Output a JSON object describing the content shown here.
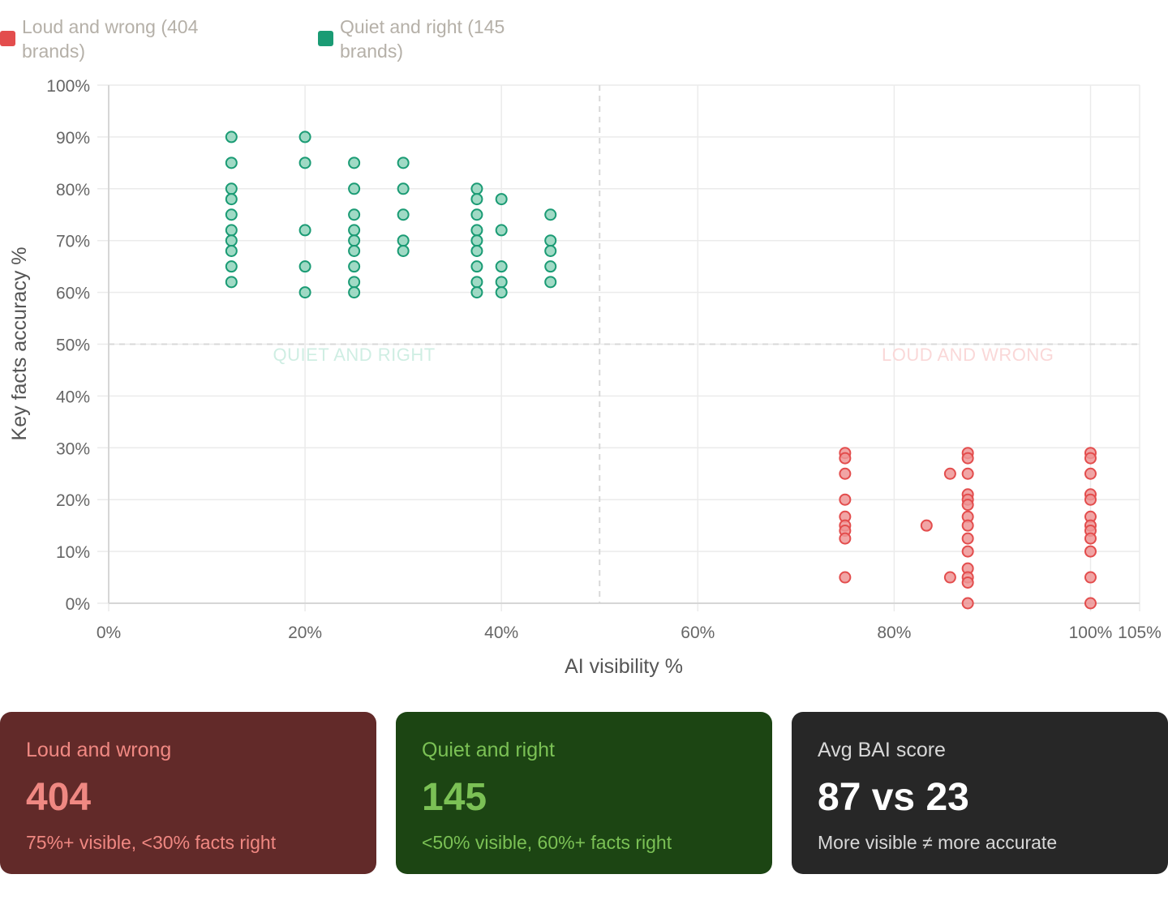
{
  "colors": {
    "red": "#e34d4d",
    "red_fill": "#ef9595",
    "green": "#1a9b74",
    "green_fill": "#8fd3bb",
    "grid": "#ebebeb",
    "axis_text": "#666666"
  },
  "legend": [
    {
      "label": "Loud and wrong (404 brands)",
      "color": "#e34d4d"
    },
    {
      "label": "Quiet and right (145 brands)",
      "color": "#1a9b74"
    }
  ],
  "chart_data": {
    "type": "scatter",
    "xlabel": "AI visibility %",
    "ylabel": "Key facts accuracy %",
    "xlim": [
      0,
      105
    ],
    "ylim": [
      0,
      100
    ],
    "xticks": [
      0,
      20,
      40,
      60,
      80,
      100,
      105
    ],
    "xtick_labels": [
      "0%",
      "20%",
      "40%",
      "60%",
      "80%",
      "100%",
      "105%"
    ],
    "yticks": [
      0,
      10,
      20,
      30,
      40,
      50,
      60,
      70,
      80,
      90,
      100
    ],
    "ytick_labels": [
      "0%",
      "10%",
      "20%",
      "30%",
      "40%",
      "50%",
      "60%",
      "70%",
      "80%",
      "90%",
      "100%"
    ],
    "reference_lines": {
      "x": 50,
      "y": 50
    },
    "quadrant_labels": [
      {
        "text": "QUIET AND RIGHT",
        "x": 25,
        "y": 49,
        "color": "#cfeee3"
      },
      {
        "text": "LOUD AND WRONG",
        "x": 87.5,
        "y": 49,
        "color": "#fad8d8"
      }
    ],
    "series": [
      {
        "name": "Quiet and right",
        "color": "#1a9b74",
        "fill": "#8fd3bb",
        "points": [
          [
            12.5,
            90
          ],
          [
            12.5,
            85
          ],
          [
            12.5,
            80
          ],
          [
            12.5,
            78
          ],
          [
            12.5,
            75
          ],
          [
            12.5,
            72
          ],
          [
            12.5,
            70
          ],
          [
            12.5,
            68
          ],
          [
            12.5,
            65
          ],
          [
            12.5,
            62
          ],
          [
            20,
            90
          ],
          [
            20,
            85
          ],
          [
            20,
            72
          ],
          [
            20,
            65
          ],
          [
            20,
            60
          ],
          [
            25,
            85
          ],
          [
            25,
            80
          ],
          [
            25,
            75
          ],
          [
            25,
            72
          ],
          [
            25,
            70
          ],
          [
            25,
            68
          ],
          [
            25,
            65
          ],
          [
            25,
            62
          ],
          [
            25,
            60
          ],
          [
            30,
            85
          ],
          [
            30,
            80
          ],
          [
            30,
            75
          ],
          [
            30,
            70
          ],
          [
            30,
            68
          ],
          [
            37.5,
            80
          ],
          [
            37.5,
            78
          ],
          [
            37.5,
            75
          ],
          [
            37.5,
            72
          ],
          [
            37.5,
            70
          ],
          [
            37.5,
            68
          ],
          [
            37.5,
            65
          ],
          [
            37.5,
            62
          ],
          [
            37.5,
            60
          ],
          [
            40,
            78
          ],
          [
            40,
            72
          ],
          [
            40,
            65
          ],
          [
            40,
            62
          ],
          [
            40,
            60
          ],
          [
            45,
            75
          ],
          [
            45,
            70
          ],
          [
            45,
            68
          ],
          [
            45,
            65
          ],
          [
            45,
            62
          ]
        ]
      },
      {
        "name": "Loud and wrong",
        "color": "#e34d4d",
        "fill": "#ef9595",
        "points": [
          [
            75,
            29
          ],
          [
            75,
            28
          ],
          [
            75,
            25
          ],
          [
            75,
            20
          ],
          [
            75,
            16.7
          ],
          [
            75,
            15
          ],
          [
            75,
            14
          ],
          [
            75,
            12.5
          ],
          [
            75,
            5
          ],
          [
            83.3,
            15
          ],
          [
            85.7,
            25
          ],
          [
            85.7,
            5
          ],
          [
            87.5,
            29
          ],
          [
            87.5,
            28
          ],
          [
            87.5,
            25
          ],
          [
            87.5,
            21
          ],
          [
            87.5,
            20
          ],
          [
            87.5,
            19
          ],
          [
            87.5,
            16.7
          ],
          [
            87.5,
            15
          ],
          [
            87.5,
            12.5
          ],
          [
            87.5,
            10
          ],
          [
            87.5,
            6.7
          ],
          [
            87.5,
            5
          ],
          [
            87.5,
            4
          ],
          [
            87.5,
            0
          ],
          [
            100,
            29
          ],
          [
            100,
            28
          ],
          [
            100,
            25
          ],
          [
            100,
            21
          ],
          [
            100,
            20
          ],
          [
            100,
            16.7
          ],
          [
            100,
            15
          ],
          [
            100,
            14
          ],
          [
            100,
            12.5
          ],
          [
            100,
            10
          ],
          [
            100,
            5
          ],
          [
            100,
            0
          ]
        ]
      }
    ]
  },
  "cards": [
    {
      "label": "Loud and wrong",
      "value": "404",
      "sub": "75%+ visible, <30% facts right"
    },
    {
      "label": "Quiet and right",
      "value": "145",
      "sub": "<50% visible, 60%+ facts right"
    },
    {
      "label": "Avg BAI score",
      "value": "87 vs 23",
      "sub": "More visible ≠ more accurate"
    }
  ]
}
